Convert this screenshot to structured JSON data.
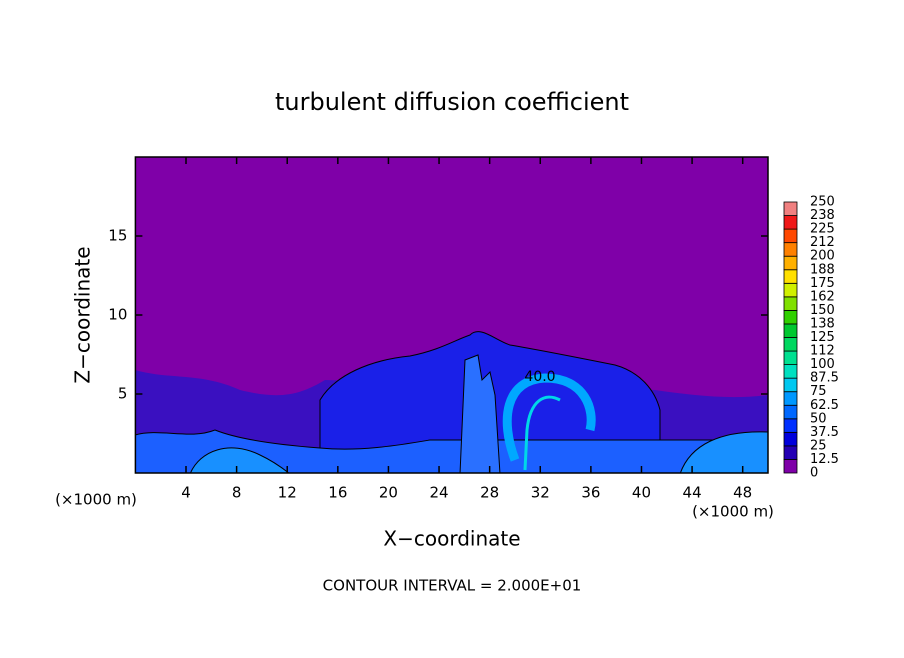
{
  "chart_data": {
    "type": "contour",
    "title": "turbulent diffusion coefficient",
    "x_label": "X−coordinate",
    "y_label": "Z−coordinate",
    "x_unit_label": "(×1000 m)",
    "footer": "CONTOUR INTERVAL = 2.000E+01",
    "contour_label": "40.0",
    "xlim": [
      0,
      50
    ],
    "ylim": [
      0,
      20
    ],
    "xticks": [
      4,
      8,
      12,
      16,
      20,
      24,
      28,
      32,
      36,
      40,
      44,
      48
    ],
    "yticks": [
      5,
      10,
      15
    ],
    "colorbar": {
      "levels": [
        0,
        12.5,
        25,
        37.5,
        50,
        62.5,
        75,
        87.5,
        100,
        112,
        125,
        138,
        150,
        162,
        175,
        188,
        200,
        212,
        225,
        238,
        250
      ],
      "colors": [
        "#7f00a8",
        "#2400b4",
        "#0000dc",
        "#0030ff",
        "#0068ff",
        "#0098ff",
        "#00c8f0",
        "#00e0c0",
        "#00e090",
        "#00d860",
        "#00c830",
        "#30d000",
        "#80e000",
        "#d0f000",
        "#ffe000",
        "#ffb000",
        "#ff8000",
        "#ff4800",
        "#f01818",
        "#f08080"
      ]
    }
  }
}
